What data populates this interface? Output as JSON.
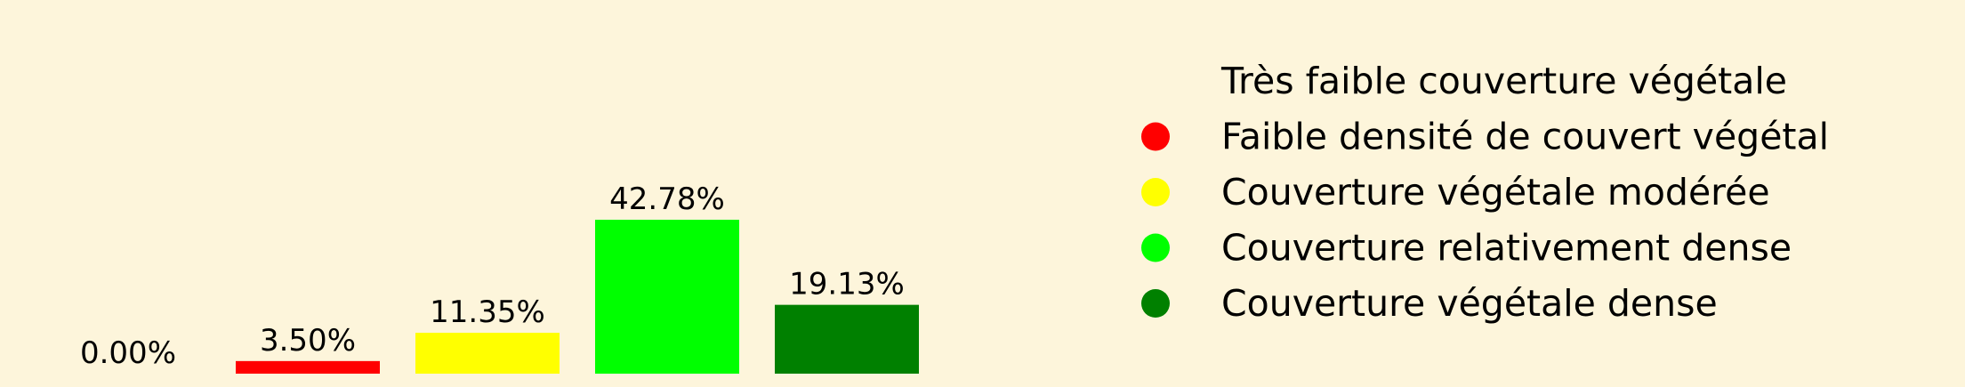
{
  "chart_data": {
    "type": "bar",
    "categories": [
      "Très faible couverture végétale",
      "Faible densité de couvert végétal",
      "Couverture végétale modérée",
      "Couverture relativement dense",
      "Couverture végétale dense"
    ],
    "values": [
      0.0,
      3.5,
      11.35,
      42.78,
      19.13
    ],
    "value_labels": [
      "0.00%",
      "3.50%",
      "11.35%",
      "42.78%",
      "19.13%"
    ],
    "colors": [
      "#fdf5db",
      "#ff0000",
      "#ffff00",
      "#00ff00",
      "#008000"
    ],
    "ylim": [
      0,
      42.78
    ],
    "legend_position": "right",
    "grid": false,
    "axes_visible": false
  }
}
